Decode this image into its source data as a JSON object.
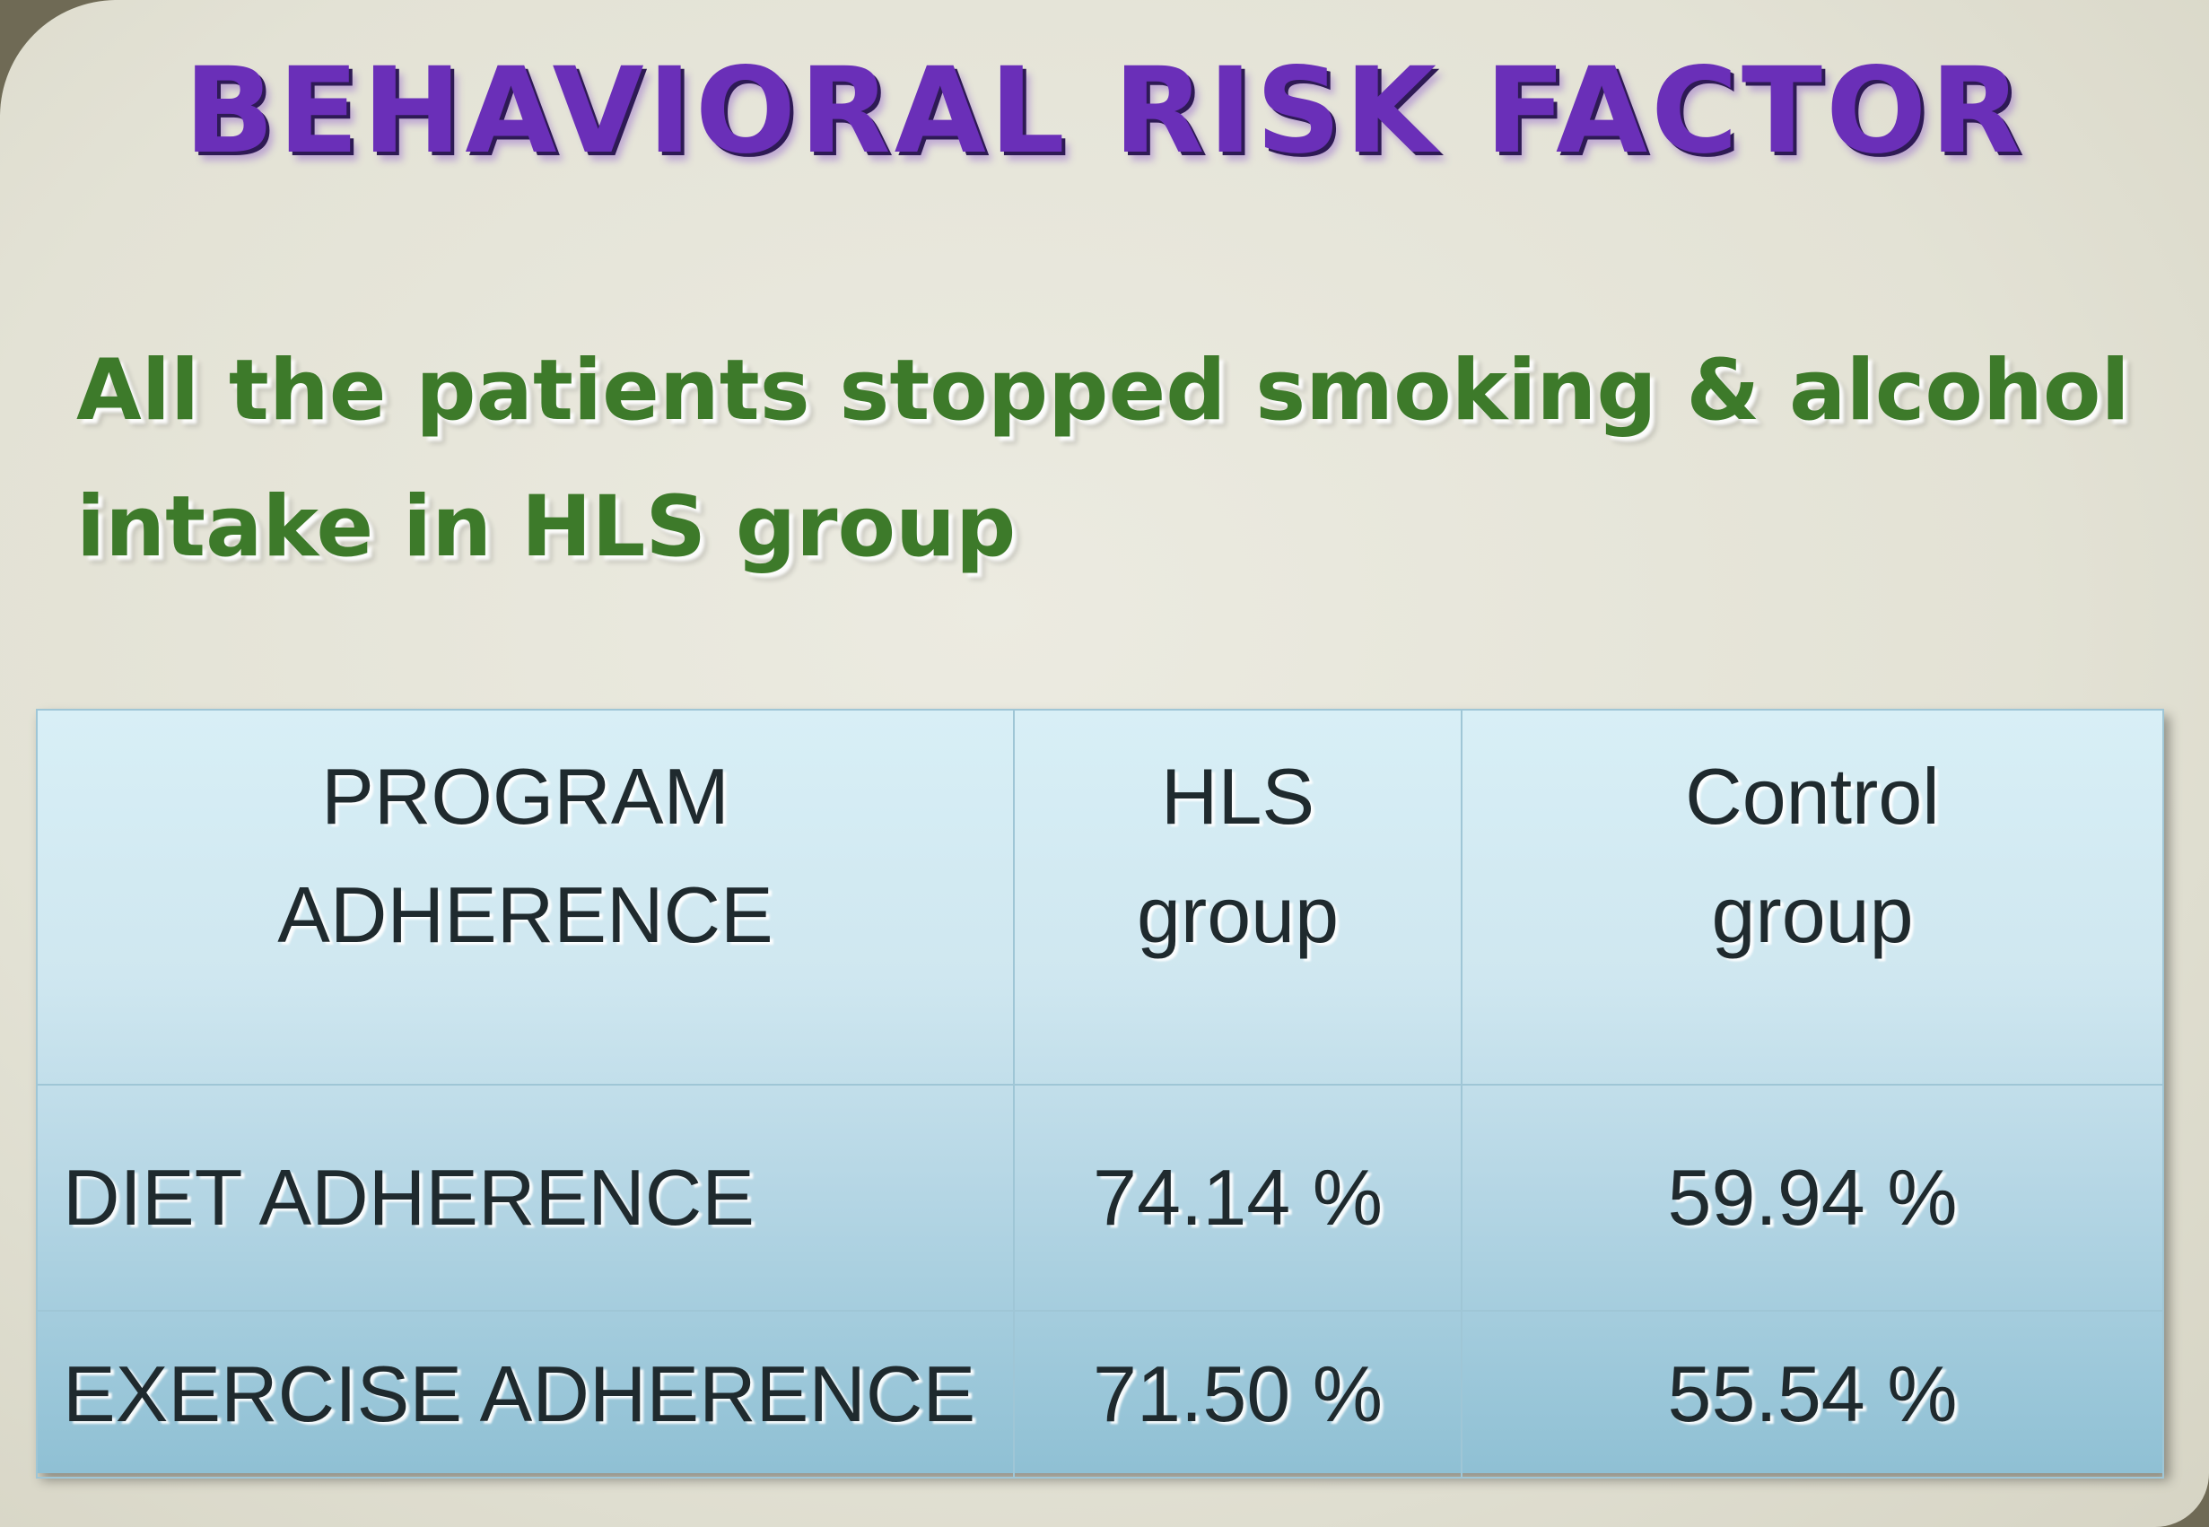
{
  "title": "BEHAVIORAL  RISK FACTOR",
  "subtitle": "All the patients stopped smoking & alcohol intake in HLS group",
  "table": {
    "headers": [
      {
        "line1": "PROGRAM",
        "line2": "ADHERENCE"
      },
      {
        "line1": "HLS",
        "line2": "group"
      },
      {
        "line1": "Control",
        "line2": "group"
      }
    ],
    "rows": [
      {
        "label": "DIET ADHERENCE",
        "hls": "74.14 %",
        "control": "59.94 %"
      },
      {
        "label": "EXERCISE ADHERENCE",
        "hls": "71.50 %",
        "control": "55.54 %"
      }
    ]
  },
  "colors": {
    "title": "#6a2fb8",
    "subtitle": "#3d7a2a",
    "table_top": "#d8eff6",
    "table_bottom": "#8fc0d4"
  }
}
